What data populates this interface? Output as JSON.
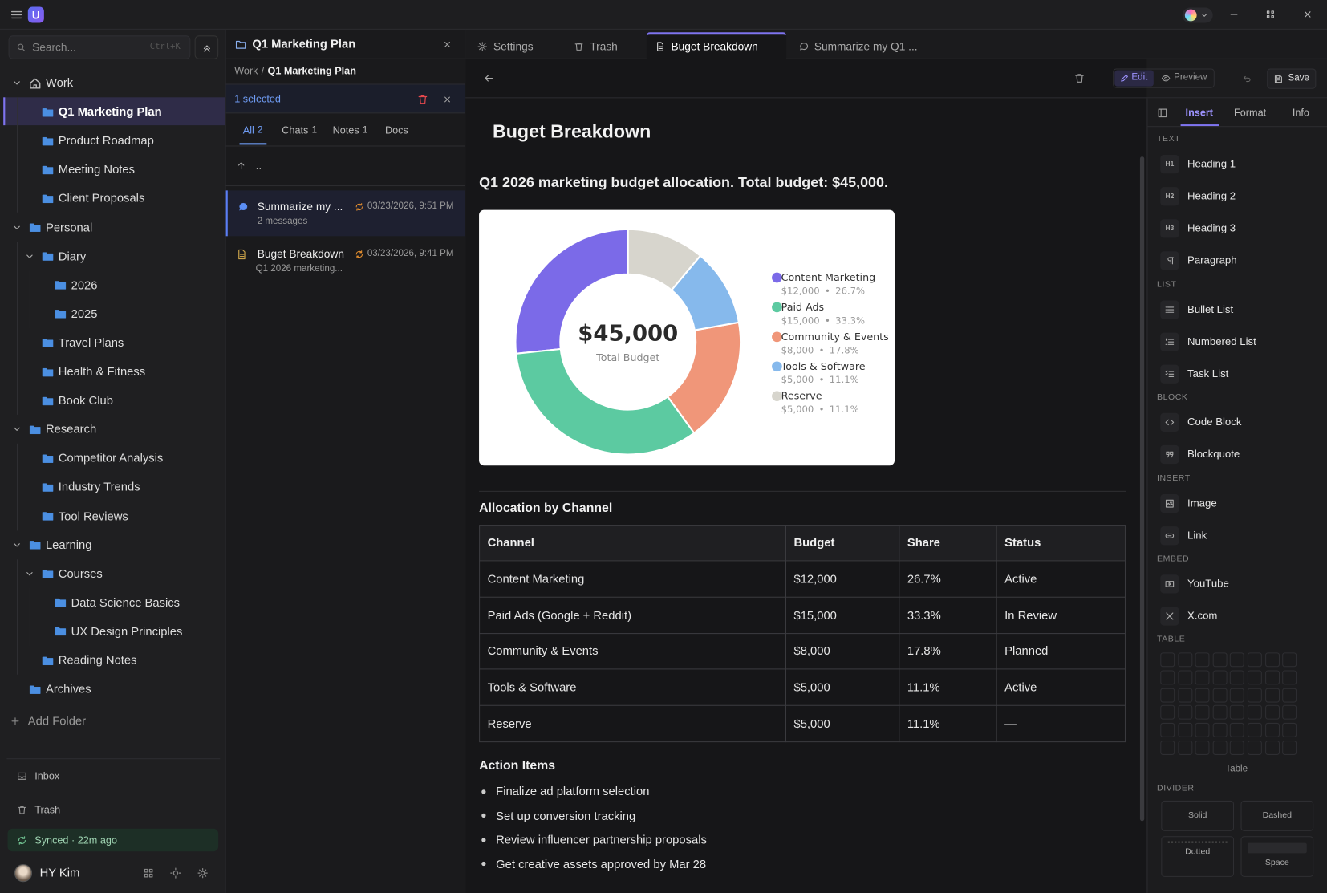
{
  "app": {
    "logo": "U"
  },
  "sidebar": {
    "search": {
      "placeholder": "Search...",
      "shortcut": "Ctrl+K"
    },
    "tree": [
      {
        "label": "Work",
        "icon": "home",
        "expanded": true,
        "children": [
          {
            "label": "Q1 Marketing Plan",
            "selected": true
          },
          {
            "label": "Product Roadmap"
          },
          {
            "label": "Meeting Notes"
          },
          {
            "label": "Client Proposals"
          }
        ]
      },
      {
        "label": "Personal",
        "expanded": true,
        "children": [
          {
            "label": "Diary",
            "expanded": true,
            "children": [
              {
                "label": "2026"
              },
              {
                "label": "2025"
              }
            ]
          },
          {
            "label": "Travel Plans"
          },
          {
            "label": "Health & Fitness"
          },
          {
            "label": "Book Club"
          }
        ]
      },
      {
        "label": "Research",
        "expanded": true,
        "children": [
          {
            "label": "Competitor Analysis"
          },
          {
            "label": "Industry Trends"
          },
          {
            "label": "Tool Reviews"
          }
        ]
      },
      {
        "label": "Learning",
        "expanded": true,
        "children": [
          {
            "label": "Courses",
            "expanded": true,
            "children": [
              {
                "label": "Data Science Basics"
              },
              {
                "label": "UX Design Principles"
              }
            ]
          },
          {
            "label": "Reading Notes"
          }
        ]
      },
      {
        "label": "Archives"
      }
    ],
    "add_folder": "Add Folder",
    "footer": {
      "inbox": "Inbox",
      "trash": "Trash",
      "sync_status": "Synced · 22m ago",
      "user": "HY Kim"
    }
  },
  "list_panel": {
    "title": "Q1 Marketing Plan",
    "breadcrumb": [
      "Work",
      "/",
      "Q1 Marketing Plan"
    ],
    "selection": "1 selected",
    "filters": [
      {
        "label": "All",
        "count": 2,
        "active": true
      },
      {
        "label": "Chats",
        "count": 1
      },
      {
        "label": "Notes",
        "count": 1
      },
      {
        "label": "Docs"
      }
    ],
    "parent_dir": "..",
    "items": [
      {
        "kind": "chat",
        "title": "Summarize my ...",
        "subtitle": "2 messages",
        "date": "03/23/2026, 9:51 PM",
        "selected": true
      },
      {
        "kind": "doc",
        "title": "Buget Breakdown",
        "subtitle": "Q1 2026 marketing...",
        "date": "03/23/2026, 9:41 PM"
      }
    ]
  },
  "tabs": [
    {
      "label": "Settings",
      "icon": "gear"
    },
    {
      "label": "Trash",
      "icon": "trash"
    },
    {
      "label": "Buget Breakdown",
      "icon": "doc",
      "active": true
    },
    {
      "label": "Summarize my Q1 ...",
      "icon": "chat"
    }
  ],
  "toolbar": {
    "edit": "Edit",
    "preview": "Preview",
    "save": "Save"
  },
  "document": {
    "title": "Buget Breakdown",
    "intro": "Q1 2026 marketing budget allocation. Total budget: $45,000.",
    "table": {
      "title": "Allocation by Channel",
      "columns": [
        "Channel",
        "Budget",
        "Share",
        "Status"
      ],
      "rows": [
        [
          "Content Marketing",
          "$12,000",
          "26.7%",
          "Active"
        ],
        [
          "Paid Ads (Google + Reddit)",
          "$15,000",
          "33.3%",
          "In Review"
        ],
        [
          "Community & Events",
          "$8,000",
          "17.8%",
          "Planned"
        ],
        [
          "Tools & Software",
          "$5,000",
          "11.1%",
          "Active"
        ],
        [
          "Reserve",
          "$5,000",
          "11.1%",
          "—"
        ]
      ]
    },
    "actions": {
      "title": "Action Items",
      "items": [
        "Finalize ad platform selection",
        "Set up conversion tracking",
        "Review influencer partnership proposals",
        "Get creative assets approved by Mar 28"
      ]
    }
  },
  "chart_data": {
    "type": "donut",
    "categories": [
      "Content Marketing",
      "Paid Ads",
      "Community & Events",
      "Tools & Software",
      "Reserve"
    ],
    "values": [
      12000,
      15000,
      8000,
      5000,
      5000
    ],
    "value_labels": [
      "$12,000",
      "$15,000",
      "$8,000",
      "$5,000",
      "$5,000"
    ],
    "share_labels": [
      "26.7%",
      "33.3%",
      "17.8%",
      "11.1%",
      "11.1%"
    ],
    "colors": [
      "#7b6ae8",
      "#5ccaa1",
      "#f09679",
      "#86b9ec",
      "#d7d5cd"
    ],
    "separator": "•",
    "total": {
      "value": 45000,
      "label": "$45,000"
    },
    "center_caption": "Total Budget",
    "legend": "right"
  },
  "inspector": {
    "tabs": [
      {
        "label": "Insert",
        "active": true
      },
      {
        "label": "Format"
      },
      {
        "label": "Info"
      }
    ],
    "sections": [
      {
        "label": "TEXT",
        "items": [
          {
            "label": "Heading 1",
            "icon_text": "H1"
          },
          {
            "label": "Heading 2",
            "icon_text": "H2"
          },
          {
            "label": "Heading 3",
            "icon_text": "H3"
          },
          {
            "label": "Paragraph",
            "icon": "pilcrow"
          }
        ]
      },
      {
        "label": "LIST",
        "items": [
          {
            "label": "Bullet List",
            "icon": "list"
          },
          {
            "label": "Numbered List",
            "icon": "olist"
          },
          {
            "label": "Task List",
            "icon": "task"
          }
        ]
      },
      {
        "label": "BLOCK",
        "items": [
          {
            "label": "Code Block",
            "icon": "code"
          },
          {
            "label": "Blockquote",
            "icon": "quote"
          }
        ]
      },
      {
        "label": "INSERT",
        "items": [
          {
            "label": "Image",
            "icon": "image"
          },
          {
            "label": "Link",
            "icon": "link"
          }
        ]
      },
      {
        "label": "EMBED",
        "items": [
          {
            "label": "YouTube",
            "icon": "youtube"
          },
          {
            "label": "X.com",
            "icon": "xlogo"
          }
        ]
      }
    ],
    "table": {
      "label": "TABLE",
      "caption": "Table"
    },
    "divider": {
      "label": "DIVIDER",
      "options": [
        "Solid",
        "Dashed",
        "Dotted",
        "Space"
      ]
    }
  }
}
